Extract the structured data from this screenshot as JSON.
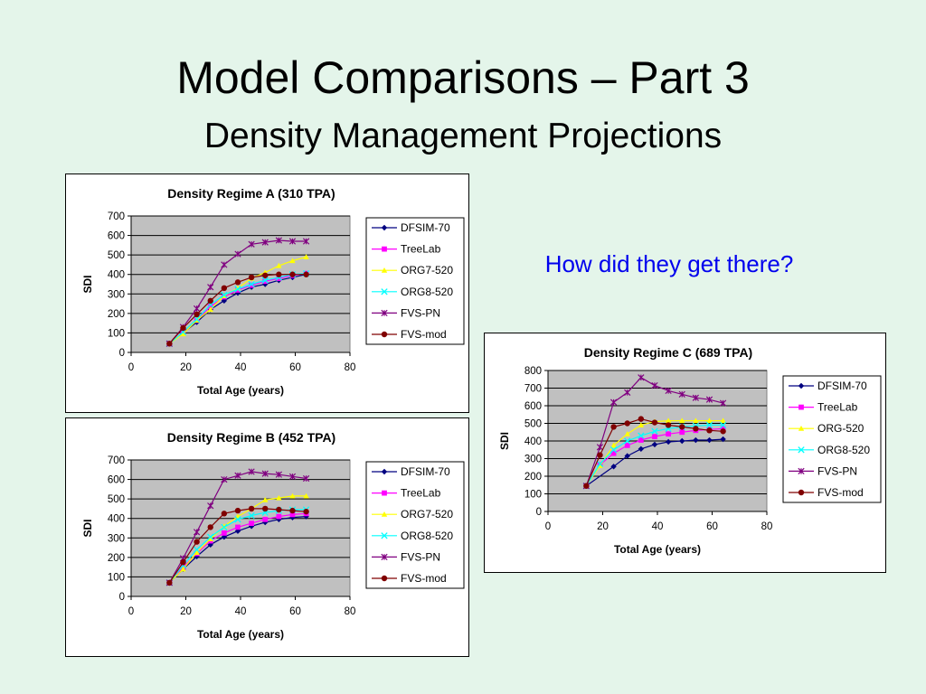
{
  "slide": {
    "title": "Model Comparisons – Part 3",
    "subtitle": "Density Management Projections",
    "question": "How did they get there?"
  },
  "colors": {
    "plot_area": "#c0c0c0",
    "DFSIM-70": "#000080",
    "TreeLab": "#ff00ff",
    "ORG": "#ffff00",
    "ORG8-520": "#00ffff",
    "FVS-PN": "#800080",
    "FVS-mod": "#800000"
  },
  "chart_data": [
    {
      "type": "line",
      "title": "Density Regime A (310 TPA)",
      "xlabel": "Total Age (years)",
      "ylabel": "SDI",
      "xlim": [
        0,
        80
      ],
      "ylim": [
        0,
        700
      ],
      "x_ticks": [
        0,
        20,
        40,
        60,
        80
      ],
      "y_ticks": [
        0,
        100,
        200,
        300,
        400,
        500,
        600,
        700
      ],
      "grid": true,
      "legend": "right",
      "series": [
        {
          "name": "DFSIM-70",
          "marker": "diamond",
          "color": "#000080",
          "points": [
            [
              14,
              45
            ],
            [
              19,
              100
            ],
            [
              24,
              155
            ],
            [
              29,
              220
            ],
            [
              34,
              265
            ],
            [
              39,
              305
            ],
            [
              44,
              335
            ],
            [
              49,
              350
            ],
            [
              54,
              370
            ],
            [
              59,
              385
            ],
            [
              64,
              400
            ]
          ]
        },
        {
          "name": "TreeLab",
          "marker": "square",
          "color": "#ff00ff",
          "points": [
            [
              14,
              45
            ],
            [
              19,
              105
            ],
            [
              24,
              165
            ],
            [
              29,
              235
            ],
            [
              34,
              285
            ],
            [
              39,
              320
            ],
            [
              44,
              345
            ],
            [
              49,
              365
            ],
            [
              54,
              380
            ],
            [
              59,
              395
            ],
            [
              64,
              405
            ]
          ]
        },
        {
          "name": "ORG7-520",
          "marker": "triangle",
          "color": "#ffff00",
          "points": [
            [
              14,
              45
            ],
            [
              19,
              95
            ],
            [
              24,
              165
            ],
            [
              29,
              220
            ],
            [
              34,
              290
            ],
            [
              39,
              330
            ],
            [
              44,
              380
            ],
            [
              49,
              410
            ],
            [
              54,
              445
            ],
            [
              59,
              470
            ],
            [
              64,
              490
            ]
          ]
        },
        {
          "name": "ORG8-520",
          "marker": "x",
          "color": "#00ffff",
          "points": [
            [
              14,
              45
            ],
            [
              19,
              105
            ],
            [
              24,
              170
            ],
            [
              29,
              245
            ],
            [
              34,
              295
            ],
            [
              39,
              325
            ],
            [
              44,
              350
            ],
            [
              49,
              370
            ],
            [
              54,
              385
            ],
            [
              59,
              400
            ],
            [
              64,
              405
            ]
          ]
        },
        {
          "name": "FVS-PN",
          "marker": "star",
          "color": "#800080",
          "points": [
            [
              14,
              45
            ],
            [
              19,
              130
            ],
            [
              24,
              225
            ],
            [
              29,
              335
            ],
            [
              34,
              450
            ],
            [
              39,
              505
            ],
            [
              44,
              555
            ],
            [
              49,
              565
            ],
            [
              54,
              575
            ],
            [
              59,
              570
            ],
            [
              64,
              570
            ]
          ]
        },
        {
          "name": "FVS-mod",
          "marker": "circle",
          "color": "#800000",
          "points": [
            [
              14,
              45
            ],
            [
              19,
              125
            ],
            [
              24,
              195
            ],
            [
              29,
              265
            ],
            [
              34,
              330
            ],
            [
              39,
              360
            ],
            [
              44,
              385
            ],
            [
              49,
              395
            ],
            [
              54,
              400
            ],
            [
              59,
              400
            ],
            [
              64,
              400
            ]
          ]
        }
      ]
    },
    {
      "type": "line",
      "title": "Density Regime B (452 TPA)",
      "xlabel": "Total Age (years)",
      "ylabel": "SDI",
      "xlim": [
        0,
        80
      ],
      "ylim": [
        0,
        700
      ],
      "x_ticks": [
        0,
        20,
        40,
        60,
        80
      ],
      "y_ticks": [
        0,
        100,
        200,
        300,
        400,
        500,
        600,
        700
      ],
      "grid": true,
      "legend": "right",
      "series": [
        {
          "name": "DFSIM-70",
          "marker": "diamond",
          "color": "#000080",
          "points": [
            [
              14,
              70
            ],
            [
              19,
              140
            ],
            [
              24,
              205
            ],
            [
              29,
              265
            ],
            [
              34,
              305
            ],
            [
              39,
              335
            ],
            [
              44,
              360
            ],
            [
              49,
              380
            ],
            [
              54,
              395
            ],
            [
              59,
              405
            ],
            [
              64,
              410
            ]
          ]
        },
        {
          "name": "TreeLab",
          "marker": "square",
          "color": "#ff00ff",
          "points": [
            [
              14,
              70
            ],
            [
              19,
              150
            ],
            [
              24,
              220
            ],
            [
              29,
              285
            ],
            [
              34,
              325
            ],
            [
              39,
              355
            ],
            [
              44,
              375
            ],
            [
              49,
              395
            ],
            [
              54,
              410
            ],
            [
              59,
              420
            ],
            [
              64,
              425
            ]
          ]
        },
        {
          "name": "ORG7-520",
          "marker": "triangle",
          "color": "#ffff00",
          "points": [
            [
              14,
              70
            ],
            [
              19,
              140
            ],
            [
              24,
              225
            ],
            [
              29,
              295
            ],
            [
              34,
              360
            ],
            [
              39,
              410
            ],
            [
              44,
              450
            ],
            [
              49,
              495
            ],
            [
              54,
              505
            ],
            [
              59,
              515
            ],
            [
              64,
              515
            ]
          ]
        },
        {
          "name": "ORG8-520",
          "marker": "x",
          "color": "#00ffff",
          "points": [
            [
              14,
              70
            ],
            [
              19,
              160
            ],
            [
              24,
              240
            ],
            [
              29,
              305
            ],
            [
              34,
              355
            ],
            [
              39,
              395
            ],
            [
              44,
              415
            ],
            [
              49,
              430
            ],
            [
              54,
              440
            ],
            [
              59,
              445
            ],
            [
              64,
              445
            ]
          ]
        },
        {
          "name": "FVS-PN",
          "marker": "star",
          "color": "#800080",
          "points": [
            [
              14,
              70
            ],
            [
              19,
              195
            ],
            [
              24,
              330
            ],
            [
              29,
              465
            ],
            [
              34,
              600
            ],
            [
              39,
              620
            ],
            [
              44,
              640
            ],
            [
              49,
              630
            ],
            [
              54,
              625
            ],
            [
              59,
              615
            ],
            [
              64,
              605
            ]
          ]
        },
        {
          "name": "FVS-mod",
          "marker": "circle",
          "color": "#800000",
          "points": [
            [
              14,
              70
            ],
            [
              19,
              175
            ],
            [
              24,
              280
            ],
            [
              29,
              355
            ],
            [
              34,
              425
            ],
            [
              39,
              440
            ],
            [
              44,
              450
            ],
            [
              49,
              450
            ],
            [
              54,
              445
            ],
            [
              59,
              440
            ],
            [
              64,
              435
            ]
          ]
        }
      ]
    },
    {
      "type": "line",
      "title": "Density Regime C (689 TPA)",
      "xlabel": "Total Age (years)",
      "ylabel": "SDI",
      "xlim": [
        0,
        80
      ],
      "ylim": [
        0,
        800
      ],
      "x_ticks": [
        0,
        20,
        40,
        60,
        80
      ],
      "y_ticks": [
        0,
        100,
        200,
        300,
        400,
        500,
        600,
        700,
        800
      ],
      "grid": true,
      "legend": "right",
      "series": [
        {
          "name": "DFSIM-70",
          "marker": "diamond",
          "color": "#000080",
          "points": [
            [
              14,
              145
            ],
            [
              24,
              255
            ],
            [
              29,
              315
            ],
            [
              34,
              355
            ],
            [
              39,
              380
            ],
            [
              44,
              395
            ],
            [
              49,
              400
            ],
            [
              54,
              405
            ],
            [
              59,
              405
            ],
            [
              64,
              410
            ]
          ]
        },
        {
          "name": "TreeLab",
          "marker": "square",
          "color": "#ff00ff",
          "points": [
            [
              14,
              145
            ],
            [
              19,
              265
            ],
            [
              24,
              330
            ],
            [
              29,
              375
            ],
            [
              34,
              405
            ],
            [
              39,
              425
            ],
            [
              44,
              440
            ],
            [
              49,
              450
            ],
            [
              54,
              460
            ],
            [
              59,
              465
            ],
            [
              64,
              470
            ]
          ]
        },
        {
          "name": "ORG-520",
          "marker": "triangle",
          "color": "#ffff00",
          "points": [
            [
              14,
              145
            ],
            [
              19,
              260
            ],
            [
              24,
              375
            ],
            [
              29,
              440
            ],
            [
              34,
              490
            ],
            [
              39,
              510
            ],
            [
              44,
              515
            ],
            [
              49,
              515
            ],
            [
              54,
              515
            ],
            [
              59,
              515
            ],
            [
              64,
              515
            ]
          ]
        },
        {
          "name": "ORG8-520",
          "marker": "x",
          "color": "#00ffff",
          "points": [
            [
              14,
              145
            ],
            [
              19,
              270
            ],
            [
              24,
              350
            ],
            [
              29,
              400
            ],
            [
              34,
              430
            ],
            [
              39,
              455
            ],
            [
              44,
              470
            ],
            [
              49,
              480
            ],
            [
              54,
              485
            ],
            [
              59,
              490
            ],
            [
              64,
              490
            ]
          ]
        },
        {
          "name": "FVS-PN",
          "marker": "star",
          "color": "#800080",
          "points": [
            [
              14,
              145
            ],
            [
              19,
              365
            ],
            [
              24,
              620
            ],
            [
              29,
              675
            ],
            [
              34,
              760
            ],
            [
              39,
              715
            ],
            [
              44,
              685
            ],
            [
              49,
              665
            ],
            [
              54,
              645
            ],
            [
              59,
              635
            ],
            [
              64,
              615
            ]
          ]
        },
        {
          "name": "FVS-mod",
          "marker": "circle",
          "color": "#800000",
          "points": [
            [
              14,
              145
            ],
            [
              19,
              320
            ],
            [
              24,
              480
            ],
            [
              29,
              500
            ],
            [
              34,
              525
            ],
            [
              39,
              505
            ],
            [
              44,
              490
            ],
            [
              49,
              480
            ],
            [
              54,
              470
            ],
            [
              59,
              460
            ],
            [
              64,
              455
            ]
          ]
        }
      ]
    }
  ]
}
